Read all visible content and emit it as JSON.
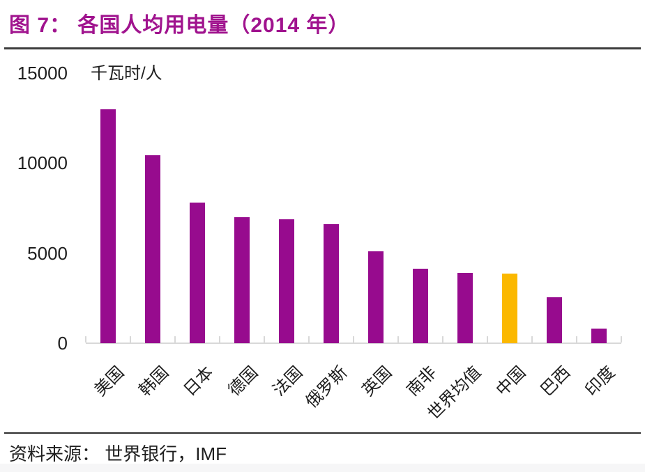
{
  "header": {
    "title": "图 7：  各国人均用电量（2014 年）"
  },
  "chart_data": {
    "type": "bar",
    "title": "各国人均用电量（2014 年）",
    "unit_label": "千瓦时/人",
    "categories": [
      "美国",
      "韩国",
      "日本",
      "德国",
      "法国",
      "俄罗斯",
      "英国",
      "南非",
      "世界均值",
      "中国",
      "巴西",
      "印度"
    ],
    "values": [
      13000,
      10450,
      7800,
      7000,
      6900,
      6600,
      5100,
      4150,
      3900,
      3850,
      2550,
      800
    ],
    "highlight_category": "中国",
    "highlight_index": 9,
    "y_ticks": [
      0,
      5000,
      10000,
      15000
    ],
    "ylim": [
      0,
      15000
    ],
    "x_label_rotation": -45,
    "grid": false,
    "legend": "none",
    "bar_color": "#970B8E",
    "highlight_color": "#FBB800",
    "axis_color": "#D8D8D8"
  },
  "footer": {
    "source_label": "资料来源：  世界银行，IMF"
  },
  "colors": {
    "title": "#A0138E",
    "divider_top": "#3C3C3C",
    "divider_bottom": "#2E2E2E",
    "tick_text": "#1F1F1F",
    "bottom_strip": "#F6F6F7"
  }
}
